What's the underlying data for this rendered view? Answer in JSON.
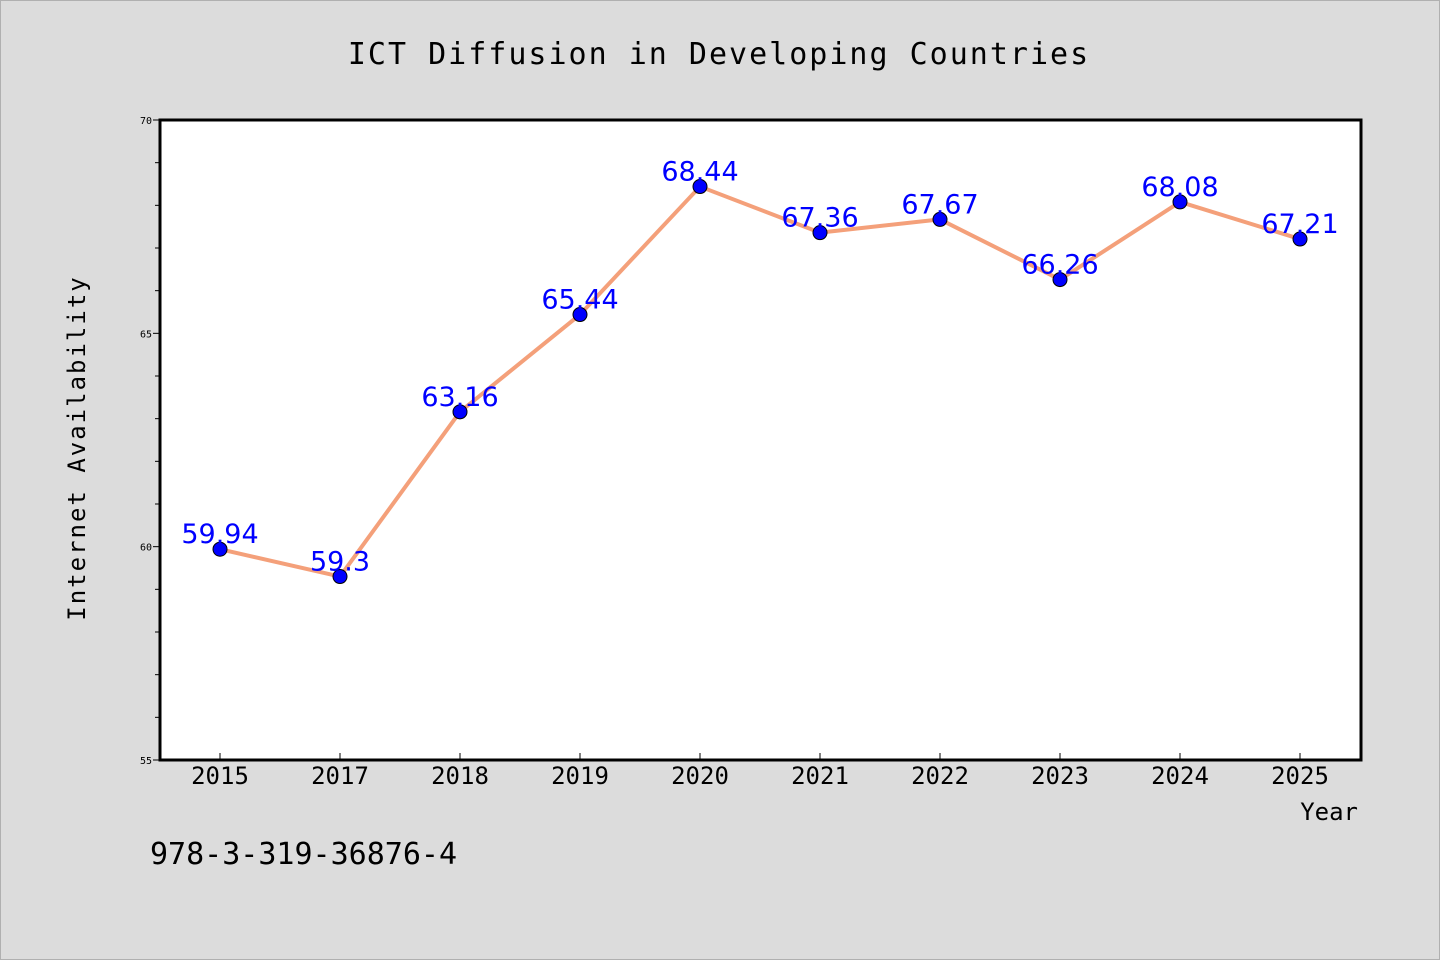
{
  "chart_data": {
    "type": "line",
    "title": "ICT Diffusion in Developing Countries",
    "xlabel": "Year",
    "ylabel": "Internet Availability",
    "categories": [
      "2015",
      "2017",
      "2018",
      "2019",
      "2020",
      "2021",
      "2022",
      "2023",
      "2024",
      "2025"
    ],
    "series": [
      {
        "values": [
          59.94,
          59.3,
          63.16,
          65.44,
          68.44,
          67.36,
          67.67,
          66.26,
          68.08,
          67.21
        ],
        "labels": [
          "59.94",
          "59.3",
          "63.16",
          "65.44",
          "68.44",
          "67.36",
          "67.67",
          "66.26",
          "68.08",
          "67.21"
        ],
        "line_color": "#f4a07a",
        "marker_color": "#0000ff"
      }
    ],
    "ylim": [
      55,
      70
    ],
    "yticks": [
      "55",
      "60",
      "65",
      "70"
    ],
    "grid": false,
    "legend": "none"
  },
  "footer_text": "978-3-319-36876-4"
}
